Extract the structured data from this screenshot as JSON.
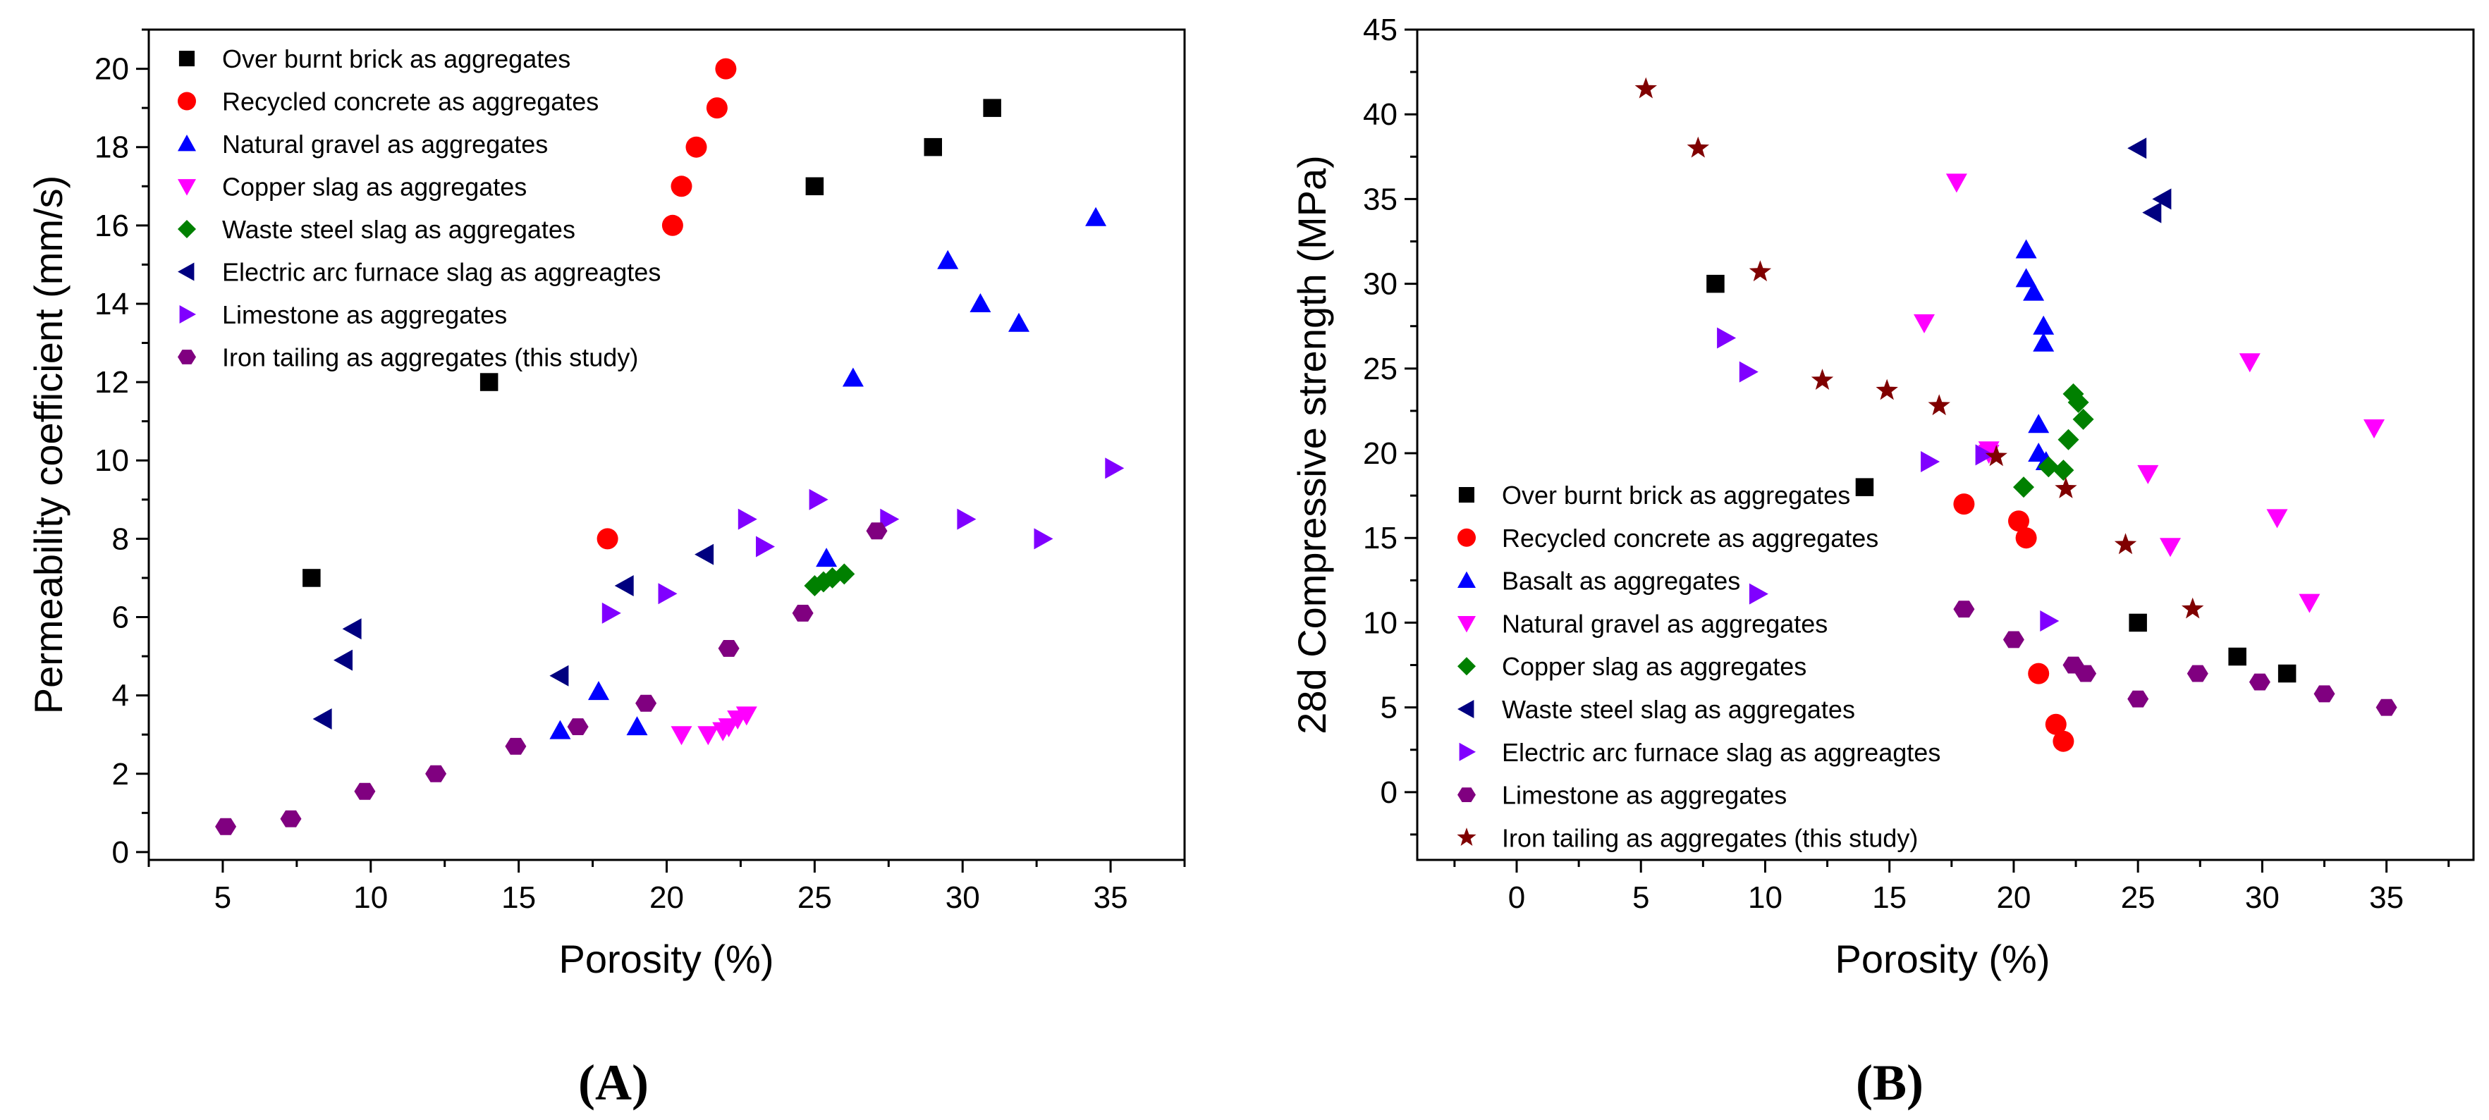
{
  "chart_data": [
    {
      "type": "scatter",
      "panel_label": "(A)",
      "xlabel": "Porosity (%)",
      "ylabel": "Permeability coefficient (mm/s)",
      "xlim": [
        2.5,
        37.5
      ],
      "ylim": [
        -0.2,
        21
      ],
      "xticks": [
        5,
        10,
        15,
        20,
        25,
        30,
        35
      ],
      "yticks": [
        0,
        2,
        4,
        6,
        8,
        10,
        12,
        14,
        16,
        18,
        20
      ],
      "legend_position": "top-left",
      "series": [
        {
          "name": "Over burnt brick as aggregates",
          "marker": "square",
          "color": "#000000",
          "x": [
            8,
            14,
            25,
            29,
            31
          ],
          "y": [
            7,
            12,
            17,
            18,
            19
          ]
        },
        {
          "name": "Recycled concrete as aggregates",
          "marker": "circle",
          "color": "#ff0000",
          "x": [
            18,
            20.2,
            20.5,
            21,
            21.7,
            22
          ],
          "y": [
            8,
            16,
            17,
            18,
            19,
            20
          ]
        },
        {
          "name": "Natural gravel as aggregates",
          "marker": "triangle-up",
          "color": "#0000ff",
          "x": [
            16.4,
            17.7,
            19,
            25.4,
            26.3,
            29.5,
            30.6,
            31.9,
            34.5
          ],
          "y": [
            3.1,
            4.1,
            3.2,
            7.5,
            12.1,
            15.1,
            14,
            13.5,
            16.2
          ]
        },
        {
          "name": "Copper slag as aggregates",
          "marker": "triangle-down",
          "color": "#ff00ff",
          "x": [
            20.5,
            21.4,
            21.9,
            22.1,
            22.4,
            22.7
          ],
          "y": [
            3,
            3,
            3.1,
            3.2,
            3.4,
            3.5
          ]
        },
        {
          "name": "Waste steel slag as aggregates",
          "marker": "diamond",
          "color": "#008000",
          "x": [
            25,
            25.3,
            25.6,
            26
          ],
          "y": [
            6.8,
            6.9,
            7,
            7.1
          ]
        },
        {
          "name": "Electric arc furnace slag as aggreagtes",
          "marker": "triangle-left",
          "color": "#000080",
          "x": [
            8.4,
            9.1,
            9.4,
            16.4,
            18.6,
            21.3
          ],
          "y": [
            3.4,
            4.9,
            5.7,
            4.5,
            6.8,
            7.6
          ]
        },
        {
          "name": "Limestone as aggregates",
          "marker": "triangle-right",
          "color": "#8000ff",
          "x": [
            18.1,
            20,
            22.7,
            23.3,
            25.1,
            27.5,
            30.1,
            32.7,
            35.1
          ],
          "y": [
            6.1,
            6.6,
            8.5,
            7.8,
            9,
            8.5,
            8.5,
            8,
            9.8
          ]
        },
        {
          "name": "Iron tailing as aggregates (this study)",
          "marker": "hexagon",
          "color": "#800080",
          "x": [
            5.1,
            7.3,
            9.8,
            12.2,
            14.9,
            17,
            19.3,
            22.1,
            24.6,
            27.1
          ],
          "y": [
            0.65,
            0.85,
            1.55,
            2,
            2.7,
            3.2,
            3.8,
            5.2,
            6.1,
            8.2
          ]
        }
      ]
    },
    {
      "type": "scatter",
      "panel_label": "(B)",
      "xlabel": "Porosity (%)",
      "ylabel": "28d Compressive strength (MPa)",
      "xlim": [
        -4,
        38.5
      ],
      "ylim": [
        -4,
        45
      ],
      "xticks": [
        0,
        5,
        10,
        15,
        20,
        25,
        30,
        35
      ],
      "yticks": [
        0,
        5,
        10,
        15,
        20,
        25,
        30,
        35,
        40,
        45
      ],
      "legend_position": "bottom-left",
      "series": [
        {
          "name": "Over burnt brick as aggregates",
          "marker": "square",
          "color": "#000000",
          "x": [
            8,
            14,
            25,
            29,
            31
          ],
          "y": [
            30,
            18,
            10,
            8,
            7
          ]
        },
        {
          "name": "Recycled concrete as aggregates",
          "marker": "circle",
          "color": "#ff0000",
          "x": [
            18,
            20.2,
            20.5,
            21,
            21.7,
            22
          ],
          "y": [
            17,
            16,
            15,
            7,
            4,
            3
          ]
        },
        {
          "name": "Basalt as aggregates",
          "marker": "triangle-up",
          "color": "#0000ff",
          "x": [
            20.5,
            20.5,
            20.8,
            21,
            21,
            21.2,
            21.2,
            21.3
          ],
          "y": [
            32,
            30.3,
            29.5,
            20,
            21.7,
            27.5,
            26.5,
            19.5
          ]
        },
        {
          "name": "Natural gravel as aggregates",
          "marker": "triangle-down",
          "color": "#ff00ff",
          "x": [
            17.7,
            16.4,
            19,
            19,
            25.4,
            26.3,
            29.5,
            30.6,
            31.9,
            34.5
          ],
          "y": [
            36,
            27.7,
            20.2,
            20,
            18.8,
            14.5,
            25.4,
            16.2,
            11.2,
            21.5
          ]
        },
        {
          "name": "Copper slag as aggregates",
          "marker": "diamond",
          "color": "#008000",
          "x": [
            20.4,
            21.4,
            22,
            22.2,
            22.4,
            22.6,
            22.8
          ],
          "y": [
            18,
            19.2,
            19,
            20.8,
            23.5,
            23,
            22
          ]
        },
        {
          "name": "Waste steel slag as aggregates",
          "marker": "triangle-left",
          "color": "#000080",
          "x": [
            25,
            25.6,
            26
          ],
          "y": [
            38,
            34.2,
            35
          ]
        },
        {
          "name": "Electric arc furnace slag as aggreagtes",
          "marker": "triangle-right",
          "color": "#8000ff",
          "x": [
            8.4,
            9.3,
            9.7,
            16.6,
            18.8,
            21.4
          ],
          "y": [
            26.8,
            24.8,
            11.7,
            19.5,
            19.9,
            10.1
          ]
        },
        {
          "name": "Limestone as aggregates",
          "marker": "hexagon",
          "color": "#800080",
          "x": [
            18,
            20,
            22.4,
            22.9,
            25,
            27.4,
            29.9,
            32.5,
            35
          ],
          "y": [
            10.8,
            9,
            7.5,
            7,
            5.5,
            7,
            6.5,
            5.8,
            5
          ]
        },
        {
          "name": "Iron tailing as aggregates (this study)",
          "marker": "star",
          "color": "#800000",
          "x": [
            5.2,
            7.3,
            9.8,
            12.3,
            14.9,
            17,
            19.3,
            22.1,
            24.5,
            27.2
          ],
          "y": [
            41.5,
            38,
            30.7,
            24.3,
            23.7,
            22.8,
            19.8,
            17.9,
            14.6,
            10.8
          ]
        }
      ]
    }
  ]
}
